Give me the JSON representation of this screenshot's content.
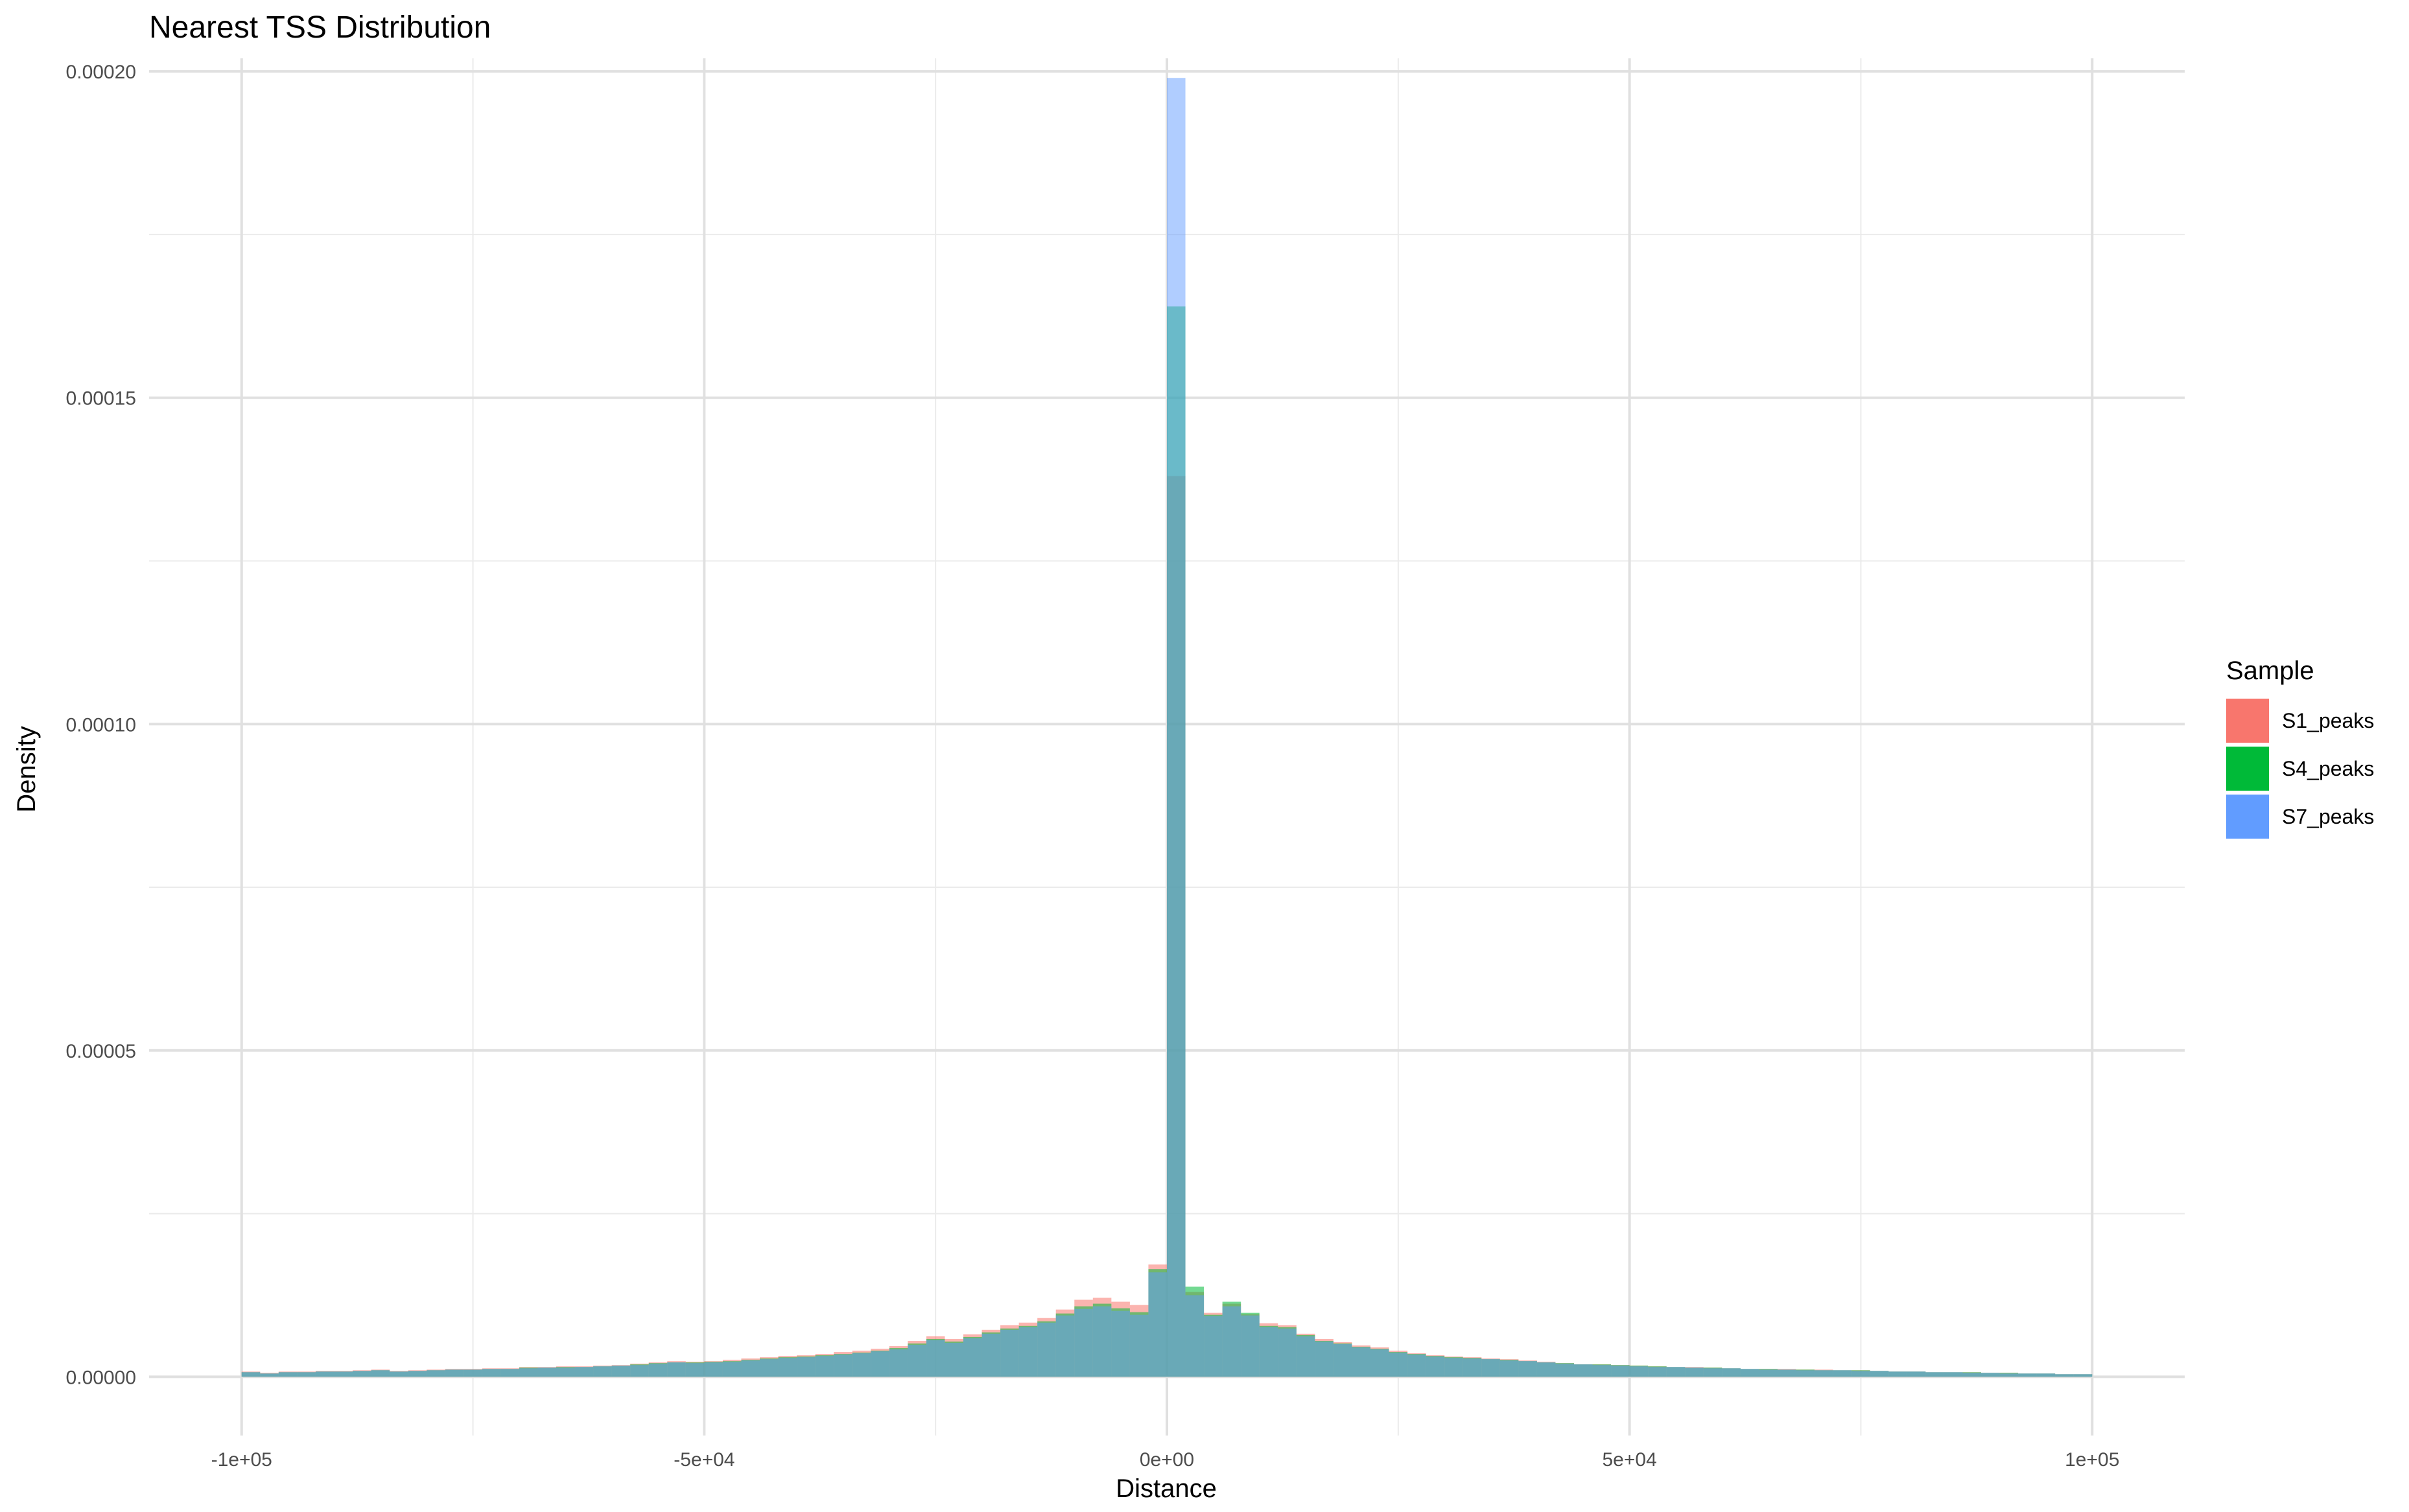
{
  "chart_data": {
    "type": "histogram",
    "title": "Nearest TSS Distribution",
    "xlabel": "Distance",
    "ylabel": "Density",
    "xlim": [
      -110000,
      110000
    ],
    "ylim": [
      -9e-06,
      0.000202
    ],
    "x_ticks": [
      {
        "value": -100000,
        "label": "-1e+05"
      },
      {
        "value": -50000,
        "label": "-5e+04"
      },
      {
        "value": 0,
        "label": "0e+00"
      },
      {
        "value": 50000,
        "label": "5e+04"
      },
      {
        "value": 100000,
        "label": "1e+05"
      }
    ],
    "y_ticks": [
      {
        "value": 0,
        "label": "0.00000"
      },
      {
        "value": 5e-05,
        "label": "0.00005"
      },
      {
        "value": 0.0001,
        "label": "0.00010"
      },
      {
        "value": 0.00015,
        "label": "0.00015"
      },
      {
        "value": 0.0002,
        "label": "0.00020"
      }
    ],
    "x_minor_gridlines": [
      -75000,
      -25000,
      25000,
      75000
    ],
    "y_minor_gridlines": [
      2.5e-05,
      7.5e-05,
      0.000125,
      0.000175
    ],
    "grid": true,
    "bin_width": 2000,
    "bin_centers": [
      -99000,
      -97000,
      -95000,
      -93000,
      -91000,
      -89000,
      -87000,
      -85000,
      -83000,
      -81000,
      -79000,
      -77000,
      -75000,
      -73000,
      -71000,
      -69000,
      -67000,
      -65000,
      -63000,
      -61000,
      -59000,
      -57000,
      -55000,
      -53000,
      -51000,
      -49000,
      -47000,
      -45000,
      -43000,
      -41000,
      -39000,
      -37000,
      -35000,
      -33000,
      -31000,
      -29000,
      -27000,
      -25000,
      -23000,
      -21000,
      -19000,
      -17000,
      -15000,
      -13000,
      -11000,
      -9000,
      -7000,
      -5000,
      -3000,
      -1000,
      1000,
      3000,
      5000,
      7000,
      9000,
      11000,
      13000,
      15000,
      17000,
      19000,
      21000,
      23000,
      25000,
      27000,
      29000,
      31000,
      33000,
      35000,
      37000,
      39000,
      41000,
      43000,
      45000,
      47000,
      49000,
      51000,
      53000,
      55000,
      57000,
      59000,
      61000,
      63000,
      65000,
      67000,
      69000,
      71000,
      73000,
      75000,
      77000,
      79000,
      81000,
      83000,
      85000,
      87000,
      89000,
      91000,
      93000,
      95000,
      97000,
      99000
    ],
    "series": [
      {
        "name": "S1_peaks",
        "color": "#F8766D",
        "opacity": 0.55,
        "values": [
          8e-07,
          6e-07,
          8e-07,
          8e-07,
          9e-07,
          9e-07,
          1e-06,
          1.1e-06,
          9e-07,
          1e-06,
          1.1e-06,
          1.2e-06,
          1.2e-06,
          1.3e-06,
          1.3e-06,
          1.5e-06,
          1.5e-06,
          1.6e-06,
          1.6e-06,
          1.7e-06,
          1.8e-06,
          2e-06,
          2.2e-06,
          2.4e-06,
          2.3e-06,
          2.4e-06,
          2.6e-06,
          2.8e-06,
          3e-06,
          3.2e-06,
          3.3e-06,
          3.5e-06,
          3.8e-06,
          4e-06,
          4.3e-06,
          4.7e-06,
          5.5e-06,
          6.2e-06,
          5.8e-06,
          6.5e-06,
          7.2e-06,
          7.9e-06,
          8.3e-06,
          9e-06,
          1.03e-05,
          1.18e-05,
          1.21e-05,
          1.15e-05,
          1.1e-05,
          1.72e-05,
          0.000138,
          1.3e-05,
          9.8e-06,
          1.12e-05,
          9.6e-06,
          8.2e-06,
          7.9e-06,
          6.6e-06,
          5.8e-06,
          5.3e-06,
          4.8e-06,
          4.5e-06,
          4e-06,
          3.6e-06,
          3.3e-06,
          3.1e-06,
          3e-06,
          2.8e-06,
          2.7e-06,
          2.5e-06,
          2.3e-06,
          2.1e-06,
          1.9e-06,
          1.9e-06,
          1.8e-06,
          1.7e-06,
          1.6e-06,
          1.5e-06,
          1.5e-06,
          1.4e-06,
          1.3e-06,
          1.2e-06,
          1.2e-06,
          1.2e-06,
          1.1e-06,
          1.1e-06,
          1e-06,
          1e-06,
          9e-07,
          8e-07,
          8e-07,
          7e-07,
          7e-07,
          7e-07,
          6e-07,
          6e-07,
          5e-07,
          5e-07,
          4e-07,
          4e-07
        ]
      },
      {
        "name": "S4_peaks",
        "color": "#00BA38",
        "opacity": 0.55,
        "values": [
          7e-07,
          5e-07,
          7e-07,
          7e-07,
          8e-07,
          8e-07,
          9e-07,
          1e-06,
          8e-07,
          9e-07,
          1e-06,
          1.1e-06,
          1.1e-06,
          1.2e-06,
          1.2e-06,
          1.4e-06,
          1.4e-06,
          1.5e-06,
          1.5e-06,
          1.6e-06,
          1.7e-06,
          1.9e-06,
          2.1e-06,
          2.2e-06,
          2.2e-06,
          2.3e-06,
          2.4e-06,
          2.6e-06,
          2.8e-06,
          3e-06,
          3.1e-06,
          3.3e-06,
          3.5e-06,
          3.7e-06,
          4e-06,
          4.4e-06,
          5.1e-06,
          5.8e-06,
          5.4e-06,
          6.1e-06,
          6.8e-06,
          7.4e-06,
          7.8e-06,
          8.5e-06,
          9.7e-06,
          1.08e-05,
          1.12e-05,
          1.05e-05,
          9.9e-06,
          1.65e-05,
          0.000164,
          1.38e-05,
          9.5e-06,
          1.15e-05,
          9.8e-06,
          7.8e-06,
          7.6e-06,
          6.4e-06,
          5.5e-06,
          5.1e-06,
          4.6e-06,
          4.3e-06,
          3.8e-06,
          3.5e-06,
          3.2e-06,
          3e-06,
          2.9e-06,
          2.7e-06,
          2.6e-06,
          2.4e-06,
          2.2e-06,
          2.1e-06,
          1.9e-06,
          1.9e-06,
          1.8e-06,
          1.7e-06,
          1.6e-06,
          1.5e-06,
          1.4e-06,
          1.4e-06,
          1.3e-06,
          1.2e-06,
          1.2e-06,
          1.1e-06,
          1.1e-06,
          1e-06,
          1e-06,
          1e-06,
          9e-07,
          8e-07,
          8e-07,
          7e-07,
          7e-07,
          7e-07,
          6e-07,
          6e-07,
          5e-07,
          5e-07,
          4e-07,
          4e-07
        ]
      },
      {
        "name": "S7_peaks",
        "color": "#619CFF",
        "opacity": 0.5,
        "values": [
          7e-07,
          5e-07,
          7e-07,
          7e-07,
          8e-07,
          8e-07,
          9e-07,
          1e-06,
          8e-07,
          9e-07,
          1e-06,
          1.1e-06,
          1.1e-06,
          1.2e-06,
          1.2e-06,
          1.3e-06,
          1.4e-06,
          1.4e-06,
          1.5e-06,
          1.6e-06,
          1.7e-06,
          1.8e-06,
          2e-06,
          2.2e-06,
          2.1e-06,
          2.2e-06,
          2.3e-06,
          2.5e-06,
          2.7e-06,
          2.9e-06,
          3e-06,
          3.2e-06,
          3.4e-06,
          3.6e-06,
          3.9e-06,
          4.2e-06,
          4.9e-06,
          5.6e-06,
          5.2e-06,
          5.9e-06,
          6.6e-06,
          7.2e-06,
          7.6e-06,
          8.3e-06,
          9.4e-06,
          1.04e-05,
          1.08e-05,
          1.01e-05,
          9.5e-06,
          1.6e-05,
          0.000199,
          1.25e-05,
          9.3e-06,
          1.08e-05,
          9.4e-06,
          7.6e-06,
          7.4e-06,
          6.2e-06,
          5.4e-06,
          5e-06,
          4.5e-06,
          4.2e-06,
          3.7e-06,
          3.4e-06,
          3.1e-06,
          2.9e-06,
          2.8e-06,
          2.7e-06,
          2.5e-06,
          2.4e-06,
          2.2e-06,
          2e-06,
          1.9e-06,
          1.8e-06,
          1.7e-06,
          1.6e-06,
          1.5e-06,
          1.5e-06,
          1.4e-06,
          1.3e-06,
          1.3e-06,
          1.2e-06,
          1.1e-06,
          1.1e-06,
          1e-06,
          1e-06,
          1e-06,
          9e-07,
          9e-07,
          8e-07,
          8e-07,
          7e-07,
          7e-07,
          6e-07,
          6e-07,
          5e-07,
          5e-07,
          5e-07,
          4e-07,
          4e-07
        ]
      }
    ],
    "legend": {
      "title": "Sample",
      "placement": "right",
      "items": [
        {
          "label": "S1_peaks",
          "color": "#F8766D"
        },
        {
          "label": "S4_peaks",
          "color": "#00BA38"
        },
        {
          "label": "S7_peaks",
          "color": "#619CFF"
        }
      ]
    }
  }
}
